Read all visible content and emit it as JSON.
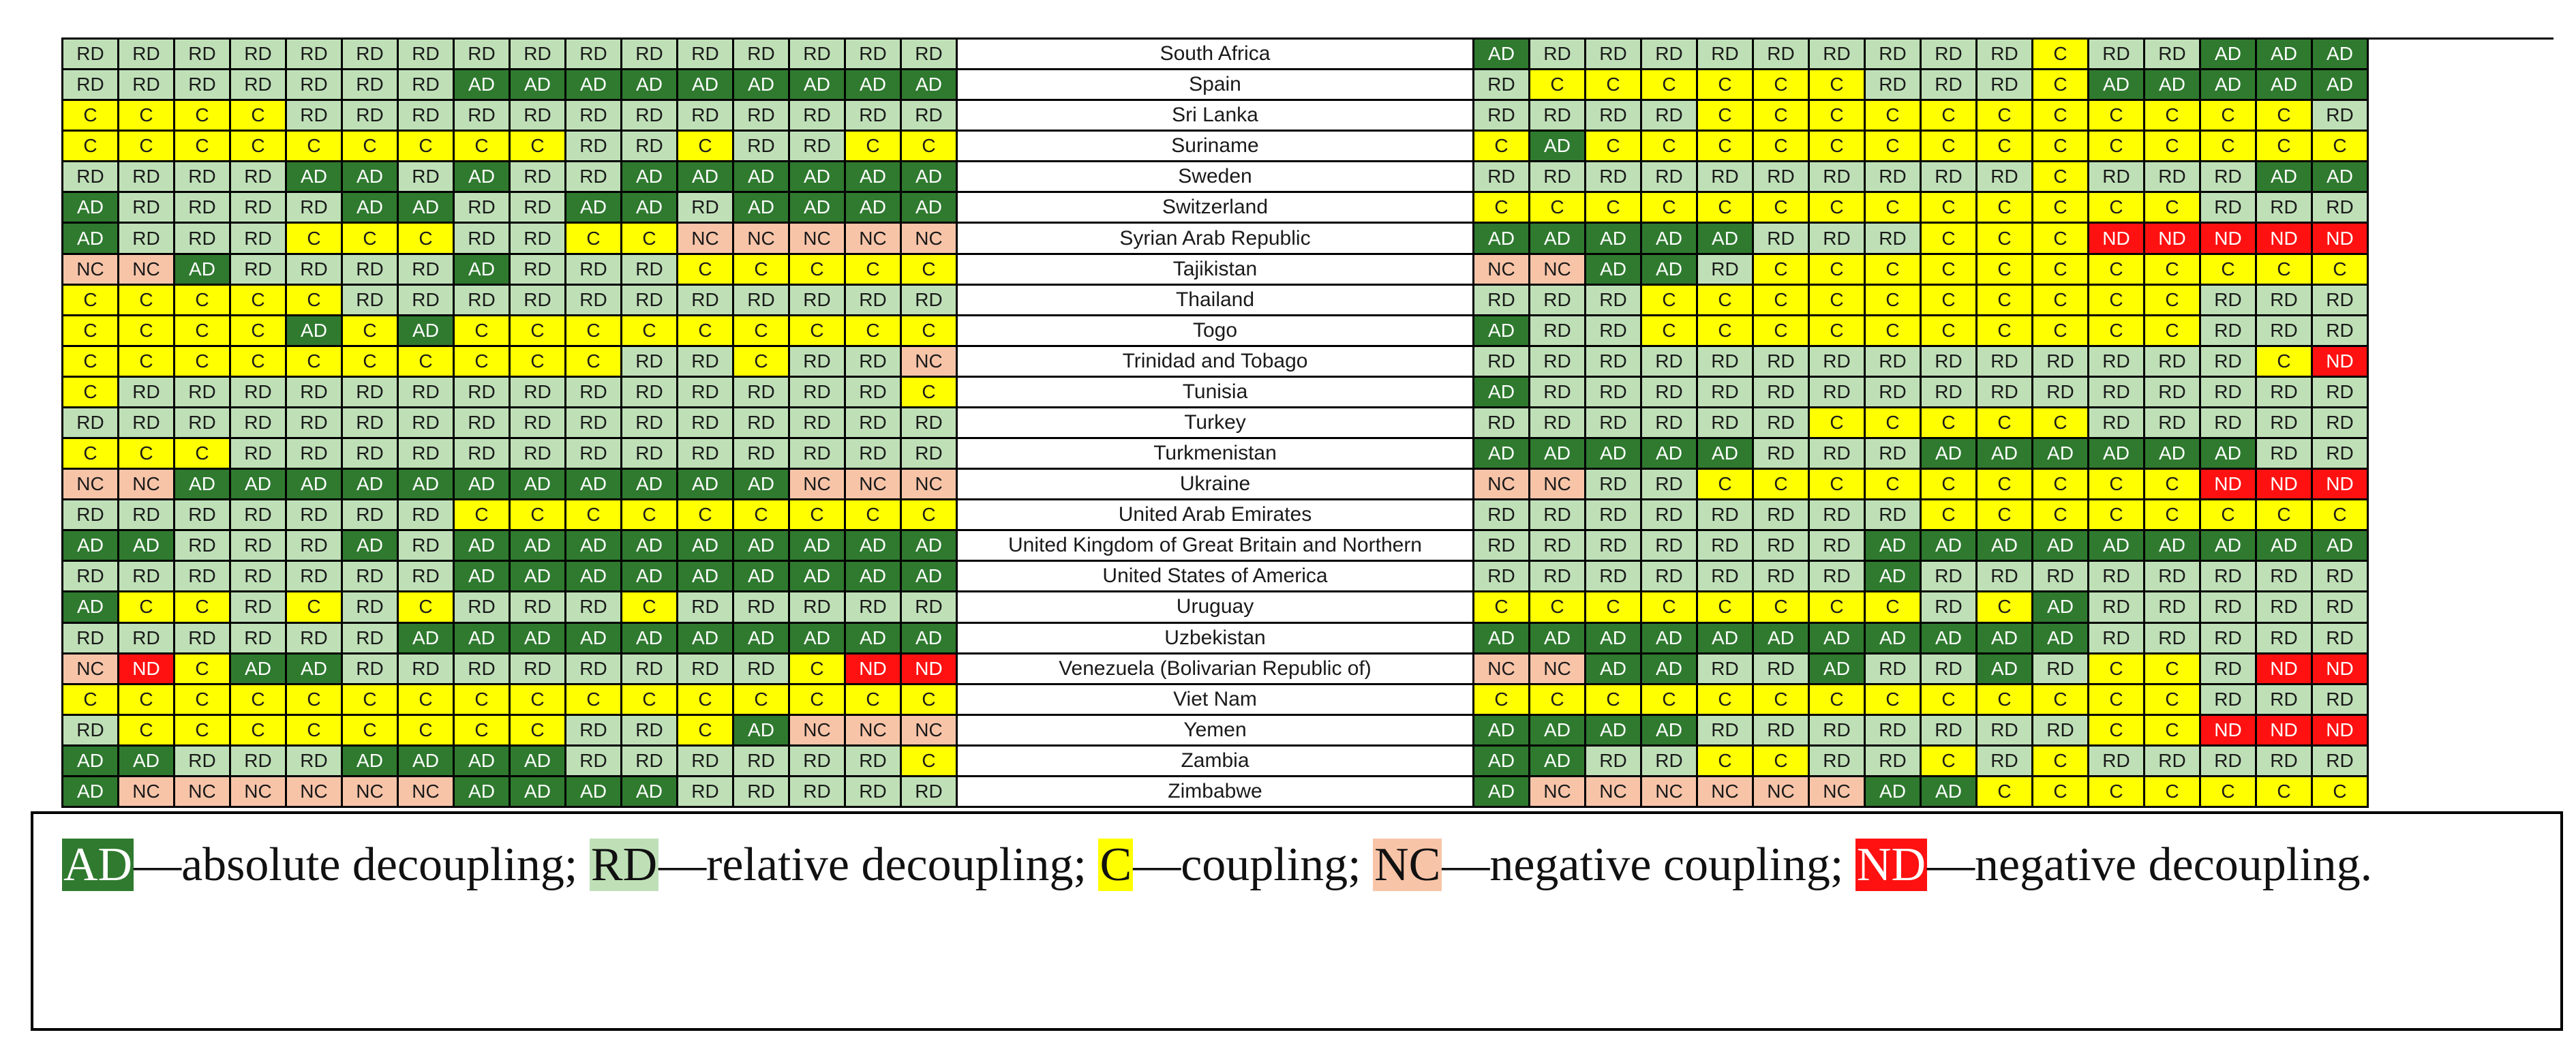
{
  "table": {
    "rows": [
      {
        "country": "South Africa",
        "left": [
          "RD",
          "RD",
          "RD",
          "RD",
          "RD",
          "RD",
          "RD",
          "RD",
          "RD",
          "RD",
          "RD",
          "RD",
          "RD",
          "RD",
          "RD",
          "RD"
        ],
        "right": [
          "AD",
          "RD",
          "RD",
          "RD",
          "RD",
          "RD",
          "RD",
          "RD",
          "RD",
          "RD",
          "C",
          "RD",
          "RD",
          "AD",
          "AD",
          "AD"
        ]
      },
      {
        "country": "Spain",
        "left": [
          "RD",
          "RD",
          "RD",
          "RD",
          "RD",
          "RD",
          "RD",
          "AD",
          "AD",
          "AD",
          "AD",
          "AD",
          "AD",
          "AD",
          "AD",
          "AD"
        ],
        "right": [
          "RD",
          "C",
          "C",
          "C",
          "C",
          "C",
          "C",
          "RD",
          "RD",
          "RD",
          "C",
          "AD",
          "AD",
          "AD",
          "AD",
          "AD"
        ]
      },
      {
        "country": "Sri Lanka",
        "left": [
          "C",
          "C",
          "C",
          "C",
          "RD",
          "RD",
          "RD",
          "RD",
          "RD",
          "RD",
          "RD",
          "RD",
          "RD",
          "RD",
          "RD",
          "RD"
        ],
        "right": [
          "RD",
          "RD",
          "RD",
          "RD",
          "C",
          "C",
          "C",
          "C",
          "C",
          "C",
          "C",
          "C",
          "C",
          "C",
          "C",
          "RD"
        ]
      },
      {
        "country": "Suriname",
        "left": [
          "C",
          "C",
          "C",
          "C",
          "C",
          "C",
          "C",
          "C",
          "C",
          "RD",
          "RD",
          "C",
          "RD",
          "RD",
          "C",
          "C"
        ],
        "right": [
          "C",
          "AD",
          "C",
          "C",
          "C",
          "C",
          "C",
          "C",
          "C",
          "C",
          "C",
          "C",
          "C",
          "C",
          "C",
          "C"
        ]
      },
      {
        "country": "Sweden",
        "left": [
          "RD",
          "RD",
          "RD",
          "RD",
          "AD",
          "AD",
          "RD",
          "AD",
          "RD",
          "RD",
          "AD",
          "AD",
          "AD",
          "AD",
          "AD",
          "AD"
        ],
        "right": [
          "RD",
          "RD",
          "RD",
          "RD",
          "RD",
          "RD",
          "RD",
          "RD",
          "RD",
          "RD",
          "C",
          "RD",
          "RD",
          "RD",
          "AD",
          "AD"
        ]
      },
      {
        "country": "Switzerland",
        "left": [
          "AD",
          "RD",
          "RD",
          "RD",
          "RD",
          "AD",
          "AD",
          "RD",
          "RD",
          "AD",
          "AD",
          "RD",
          "AD",
          "AD",
          "AD",
          "AD"
        ],
        "right": [
          "C",
          "C",
          "C",
          "C",
          "C",
          "C",
          "C",
          "C",
          "C",
          "C",
          "C",
          "C",
          "C",
          "RD",
          "RD",
          "RD"
        ]
      },
      {
        "country": "Syrian Arab Republic",
        "left": [
          "AD",
          "RD",
          "RD",
          "RD",
          "C",
          "C",
          "C",
          "RD",
          "RD",
          "C",
          "C",
          "NC",
          "NC",
          "NC",
          "NC",
          "NC"
        ],
        "right": [
          "AD",
          "AD",
          "AD",
          "AD",
          "AD",
          "RD",
          "RD",
          "RD",
          "C",
          "C",
          "C",
          "ND",
          "ND",
          "ND",
          "ND",
          "ND"
        ]
      },
      {
        "country": "Tajikistan",
        "left": [
          "NC",
          "NC",
          "AD",
          "RD",
          "RD",
          "RD",
          "RD",
          "AD",
          "RD",
          "RD",
          "RD",
          "C",
          "C",
          "C",
          "C",
          "C"
        ],
        "right": [
          "NC",
          "NC",
          "AD",
          "AD",
          "RD",
          "C",
          "C",
          "C",
          "C",
          "C",
          "C",
          "C",
          "C",
          "C",
          "C",
          "C"
        ]
      },
      {
        "country": "Thailand",
        "left": [
          "C",
          "C",
          "C",
          "C",
          "C",
          "RD",
          "RD",
          "RD",
          "RD",
          "RD",
          "RD",
          "RD",
          "RD",
          "RD",
          "RD",
          "RD"
        ],
        "right": [
          "RD",
          "RD",
          "RD",
          "C",
          "C",
          "C",
          "C",
          "C",
          "C",
          "C",
          "C",
          "C",
          "C",
          "RD",
          "RD",
          "RD"
        ]
      },
      {
        "country": "Togo",
        "left": [
          "C",
          "C",
          "C",
          "C",
          "AD",
          "C",
          "AD",
          "C",
          "C",
          "C",
          "C",
          "C",
          "C",
          "C",
          "C",
          "C"
        ],
        "right": [
          "AD",
          "RD",
          "RD",
          "C",
          "C",
          "C",
          "C",
          "C",
          "C",
          "C",
          "C",
          "C",
          "C",
          "RD",
          "RD",
          "RD"
        ]
      },
      {
        "country": "Trinidad and Tobago",
        "left": [
          "C",
          "C",
          "C",
          "C",
          "C",
          "C",
          "C",
          "C",
          "C",
          "C",
          "RD",
          "RD",
          "C",
          "RD",
          "RD",
          "NC"
        ],
        "right": [
          "RD",
          "RD",
          "RD",
          "RD",
          "RD",
          "RD",
          "RD",
          "RD",
          "RD",
          "RD",
          "RD",
          "RD",
          "RD",
          "RD",
          "C",
          "ND"
        ]
      },
      {
        "country": "Tunisia",
        "left": [
          "C",
          "RD",
          "RD",
          "RD",
          "RD",
          "RD",
          "RD",
          "RD",
          "RD",
          "RD",
          "RD",
          "RD",
          "RD",
          "RD",
          "RD",
          "C"
        ],
        "right": [
          "AD",
          "RD",
          "RD",
          "RD",
          "RD",
          "RD",
          "RD",
          "RD",
          "RD",
          "RD",
          "RD",
          "RD",
          "RD",
          "RD",
          "RD",
          "RD"
        ]
      },
      {
        "country": "Turkey",
        "left": [
          "RD",
          "RD",
          "RD",
          "RD",
          "RD",
          "RD",
          "RD",
          "RD",
          "RD",
          "RD",
          "RD",
          "RD",
          "RD",
          "RD",
          "RD",
          "RD"
        ],
        "right": [
          "RD",
          "RD",
          "RD",
          "RD",
          "RD",
          "RD",
          "C",
          "C",
          "C",
          "C",
          "C",
          "RD",
          "RD",
          "RD",
          "RD",
          "RD"
        ]
      },
      {
        "country": "Turkmenistan",
        "left": [
          "C",
          "C",
          "C",
          "RD",
          "RD",
          "RD",
          "RD",
          "RD",
          "RD",
          "RD",
          "RD",
          "RD",
          "RD",
          "RD",
          "RD",
          "RD"
        ],
        "right": [
          "AD",
          "AD",
          "AD",
          "AD",
          "AD",
          "RD",
          "RD",
          "RD",
          "AD",
          "AD",
          "AD",
          "AD",
          "AD",
          "AD",
          "RD",
          "RD"
        ]
      },
      {
        "country": "Ukraine",
        "left": [
          "NC",
          "NC",
          "AD",
          "AD",
          "AD",
          "AD",
          "AD",
          "AD",
          "AD",
          "AD",
          "AD",
          "AD",
          "AD",
          "NC",
          "NC",
          "NC"
        ],
        "right": [
          "NC",
          "NC",
          "RD",
          "RD",
          "C",
          "C",
          "C",
          "C",
          "C",
          "C",
          "C",
          "C",
          "C",
          "ND",
          "ND",
          "ND"
        ]
      },
      {
        "country": "United Arab Emirates",
        "left": [
          "RD",
          "RD",
          "RD",
          "RD",
          "RD",
          "RD",
          "RD",
          "C",
          "C",
          "C",
          "C",
          "C",
          "C",
          "C",
          "C",
          "C"
        ],
        "right": [
          "RD",
          "RD",
          "RD",
          "RD",
          "RD",
          "RD",
          "RD",
          "RD",
          "C",
          "C",
          "C",
          "C",
          "C",
          "C",
          "C",
          "C"
        ]
      },
      {
        "country": "United Kingdom of Great Britain and Northern",
        "left": [
          "AD",
          "AD",
          "RD",
          "RD",
          "RD",
          "AD",
          "RD",
          "AD",
          "AD",
          "AD",
          "AD",
          "AD",
          "AD",
          "AD",
          "AD",
          "AD"
        ],
        "right": [
          "RD",
          "RD",
          "RD",
          "RD",
          "RD",
          "RD",
          "RD",
          "AD",
          "AD",
          "AD",
          "AD",
          "AD",
          "AD",
          "AD",
          "AD",
          "AD"
        ]
      },
      {
        "country": "United States of America",
        "left": [
          "RD",
          "RD",
          "RD",
          "RD",
          "RD",
          "RD",
          "RD",
          "AD",
          "AD",
          "AD",
          "AD",
          "AD",
          "AD",
          "AD",
          "AD",
          "AD"
        ],
        "right": [
          "RD",
          "RD",
          "RD",
          "RD",
          "RD",
          "RD",
          "RD",
          "AD",
          "RD",
          "RD",
          "RD",
          "RD",
          "RD",
          "RD",
          "RD",
          "RD"
        ]
      },
      {
        "country": "Uruguay",
        "left": [
          "AD",
          "C",
          "C",
          "RD",
          "C",
          "RD",
          "C",
          "RD",
          "RD",
          "RD",
          "C",
          "RD",
          "RD",
          "RD",
          "RD",
          "RD"
        ],
        "right": [
          "C",
          "C",
          "C",
          "C",
          "C",
          "C",
          "C",
          "C",
          "RD",
          "C",
          "AD",
          "RD",
          "RD",
          "RD",
          "RD",
          "RD"
        ]
      },
      {
        "country": "Uzbekistan",
        "left": [
          "RD",
          "RD",
          "RD",
          "RD",
          "RD",
          "RD",
          "AD",
          "AD",
          "AD",
          "AD",
          "AD",
          "AD",
          "AD",
          "AD",
          "AD",
          "AD"
        ],
        "right": [
          "AD",
          "AD",
          "AD",
          "AD",
          "AD",
          "AD",
          "AD",
          "AD",
          "AD",
          "AD",
          "AD",
          "RD",
          "RD",
          "RD",
          "RD",
          "RD"
        ]
      },
      {
        "country": "Venezuela (Bolivarian Republic of)",
        "left": [
          "NC",
          "ND",
          "C",
          "AD",
          "AD",
          "RD",
          "RD",
          "RD",
          "RD",
          "RD",
          "RD",
          "RD",
          "RD",
          "C",
          "ND",
          "ND"
        ],
        "right": [
          "NC",
          "NC",
          "AD",
          "AD",
          "RD",
          "RD",
          "AD",
          "RD",
          "RD",
          "AD",
          "RD",
          "C",
          "C",
          "RD",
          "ND",
          "ND"
        ]
      },
      {
        "country": "Viet Nam",
        "left": [
          "C",
          "C",
          "C",
          "C",
          "C",
          "C",
          "C",
          "C",
          "C",
          "C",
          "C",
          "C",
          "C",
          "C",
          "C",
          "C"
        ],
        "right": [
          "C",
          "C",
          "C",
          "C",
          "C",
          "C",
          "C",
          "C",
          "C",
          "C",
          "C",
          "C",
          "C",
          "RD",
          "RD",
          "RD"
        ]
      },
      {
        "country": "Yemen",
        "left": [
          "RD",
          "C",
          "C",
          "C",
          "C",
          "C",
          "C",
          "C",
          "C",
          "RD",
          "RD",
          "C",
          "AD",
          "NC",
          "NC",
          "NC"
        ],
        "right": [
          "AD",
          "AD",
          "AD",
          "AD",
          "RD",
          "RD",
          "RD",
          "RD",
          "RD",
          "RD",
          "RD",
          "C",
          "C",
          "ND",
          "ND",
          "ND"
        ]
      },
      {
        "country": "Zambia",
        "left": [
          "AD",
          "AD",
          "RD",
          "RD",
          "RD",
          "AD",
          "AD",
          "AD",
          "AD",
          "RD",
          "RD",
          "RD",
          "RD",
          "RD",
          "RD",
          "C"
        ],
        "right": [
          "AD",
          "AD",
          "RD",
          "RD",
          "C",
          "C",
          "RD",
          "RD",
          "C",
          "RD",
          "C",
          "RD",
          "RD",
          "RD",
          "RD",
          "RD"
        ]
      },
      {
        "country": "Zimbabwe",
        "left": [
          "AD",
          "NC",
          "NC",
          "NC",
          "NC",
          "NC",
          "NC",
          "AD",
          "AD",
          "AD",
          "AD",
          "RD",
          "RD",
          "RD",
          "RD",
          "RD"
        ],
        "right": [
          "AD",
          "NC",
          "NC",
          "NC",
          "NC",
          "NC",
          "NC",
          "AD",
          "AD",
          "C",
          "C",
          "C",
          "C",
          "C",
          "C",
          "C"
        ]
      }
    ]
  },
  "legend": {
    "items": [
      {
        "code": "AD",
        "desc": "absolute decoupling;",
        "color": "#2f7a2f"
      },
      {
        "code": "RD",
        "desc": "relative decoupling;",
        "color": "#bfe0b7"
      },
      {
        "code": "C",
        "desc": "coupling;",
        "color": "#ffff00"
      },
      {
        "code": "NC",
        "desc": "negative coupling;",
        "color": "#f8c4a8"
      },
      {
        "code": "ND",
        "desc": "negative decoupling.",
        "color": "#ff1111"
      }
    ],
    "dash": "—"
  }
}
